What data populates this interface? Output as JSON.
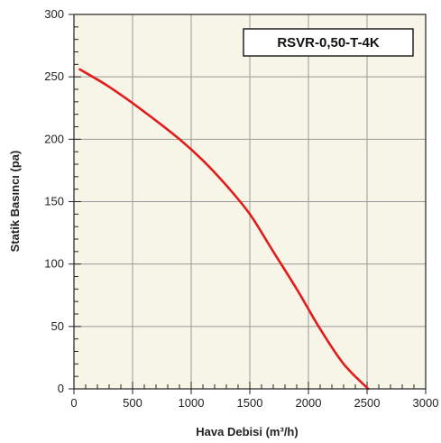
{
  "chart_data": {
    "type": "line",
    "title": "",
    "model_label": "RSVR-0,50-T-4K",
    "xlabel": "Hava Debisi (m³/h)",
    "ylabel": "Statik Basıncı (pa)",
    "xlim": [
      0,
      3000
    ],
    "ylim": [
      0,
      300
    ],
    "x_ticks": [
      0,
      500,
      1000,
      1500,
      2000,
      2500,
      3000
    ],
    "y_ticks": [
      0,
      50,
      100,
      150,
      200,
      250,
      300
    ],
    "x_minor_step": 100,
    "y_minor_step": 10,
    "grid": true,
    "legend": "none",
    "colors": {
      "plot_background": "#f7f5e8",
      "grid": "#999999",
      "curve": "#e21b1b"
    },
    "series": [
      {
        "x": [
          50,
          300,
          600,
          900,
          1100,
          1300,
          1500,
          1700,
          1900,
          2100,
          2300,
          2510
        ],
        "values": [
          256,
          242,
          222,
          200,
          183,
          163,
          140,
          110,
          80,
          48,
          20,
          0
        ]
      }
    ]
  }
}
